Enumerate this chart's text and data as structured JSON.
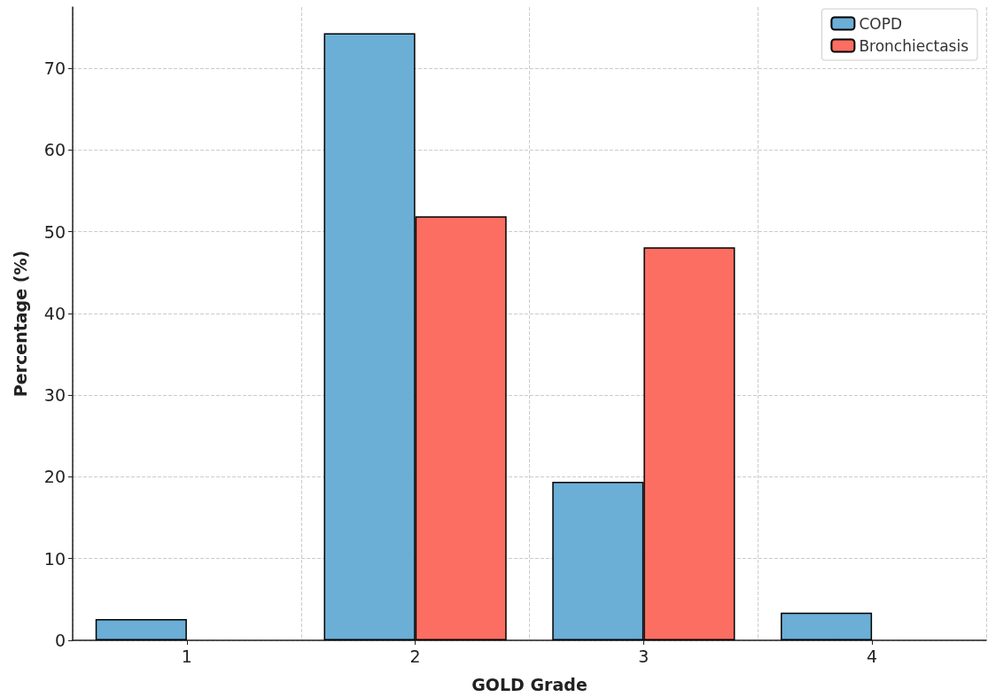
{
  "chart_data": {
    "type": "bar",
    "xlabel": "GOLD Grade",
    "ylabel": "Percentage (%)",
    "categories": [
      "1",
      "2",
      "3",
      "4"
    ],
    "series": [
      {
        "name": "COPD",
        "color": "#6baed6",
        "values": [
          2.6,
          74.3,
          19.4,
          3.4
        ]
      },
      {
        "name": "Bronchiectasis",
        "color": "#fc6e61",
        "values": [
          0,
          51.9,
          48.1,
          0
        ]
      }
    ],
    "ylim": [
      0,
      77.5
    ],
    "yticks": [
      0,
      10,
      20,
      30,
      40,
      50,
      60,
      70
    ],
    "grid": true,
    "legend": "top right"
  }
}
